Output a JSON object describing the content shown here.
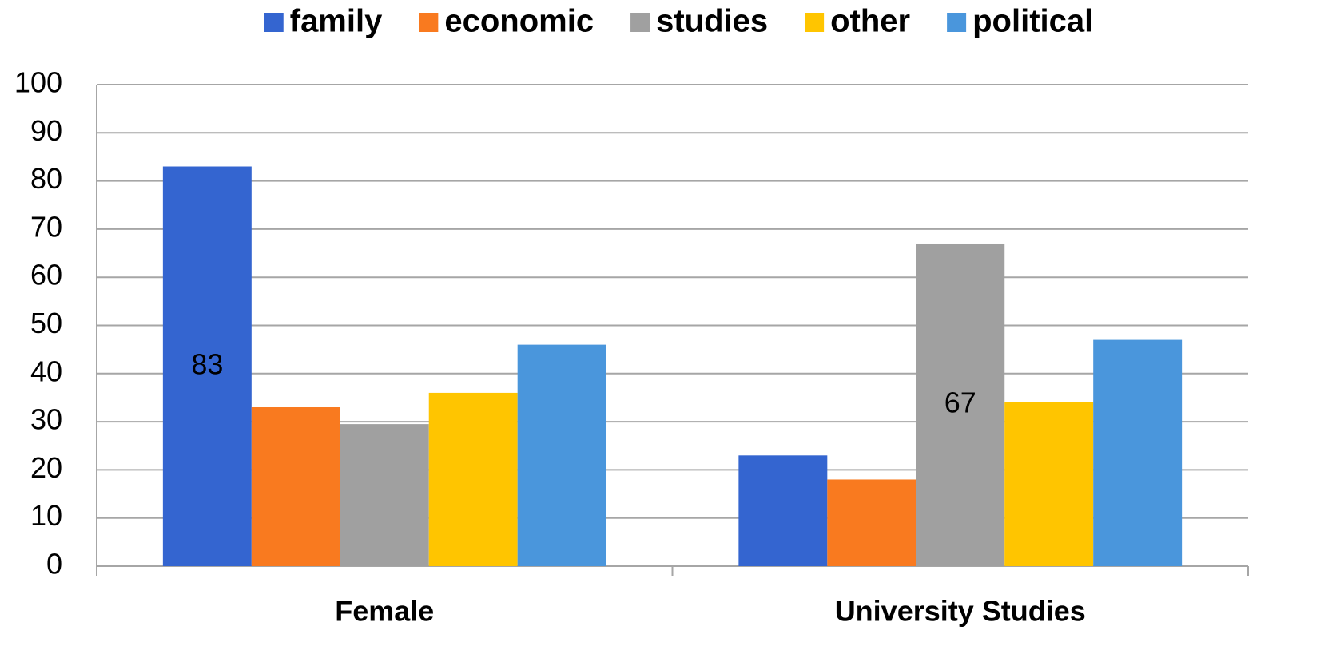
{
  "chart_data": {
    "type": "bar",
    "categories": [
      "Female",
      "University Studies"
    ],
    "series": [
      {
        "name": "family",
        "color": "#3465d0",
        "values": [
          83,
          23
        ],
        "value_labels": [
          "83",
          null
        ]
      },
      {
        "name": "economic",
        "color": "#f97a1f",
        "values": [
          33,
          18
        ]
      },
      {
        "name": "studies",
        "color": "#a0a0a0",
        "values": [
          29.5,
          67
        ],
        "value_labels": [
          null,
          "67"
        ]
      },
      {
        "name": "other",
        "color": "#ffc500",
        "values": [
          36,
          34
        ]
      },
      {
        "name": "political",
        "color": "#4a96dc",
        "values": [
          46,
          47
        ]
      }
    ],
    "ylim": [
      0,
      100
    ],
    "yticks": [
      0,
      10,
      20,
      30,
      40,
      50,
      60,
      70,
      80,
      90,
      100
    ],
    "grid": true,
    "legend": "top"
  }
}
